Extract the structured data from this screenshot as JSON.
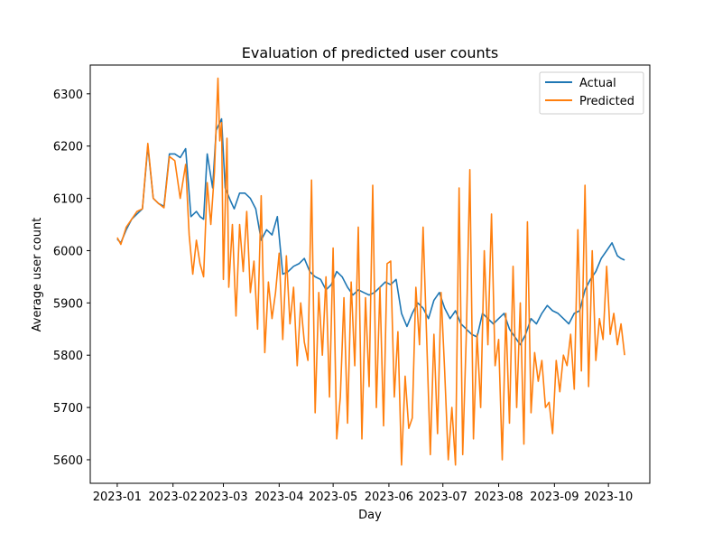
{
  "chart_data": {
    "type": "line",
    "title": "Evaluation of predicted user counts",
    "xlabel": "Day",
    "ylabel": "Average user count",
    "x_start": "2023-01-01",
    "x_end": "2023-10-10",
    "xlim": [
      "2022-12-17",
      "2023-10-24"
    ],
    "ylim": [
      5555,
      6355
    ],
    "x_ticks": [
      "2023-01",
      "2023-02",
      "2023-03",
      "2023-04",
      "2023-05",
      "2023-06",
      "2023-07",
      "2023-08",
      "2023-09",
      "2023-10"
    ],
    "y_ticks": [
      5600,
      5700,
      5800,
      5900,
      6000,
      6100,
      6200,
      6300
    ],
    "grid": false,
    "legend": "top-right",
    "series": [
      {
        "name": "Actual",
        "color": "#1f77b4",
        "points": [
          [
            "2023-01-01",
            6022
          ],
          [
            "2023-01-03",
            6015
          ],
          [
            "2023-01-06",
            6040
          ],
          [
            "2023-01-09",
            6060
          ],
          [
            "2023-01-12",
            6070
          ],
          [
            "2023-01-15",
            6080
          ],
          [
            "2023-01-18",
            6200
          ],
          [
            "2023-01-21",
            6100
          ],
          [
            "2023-01-24",
            6090
          ],
          [
            "2023-01-27",
            6085
          ],
          [
            "2023-01-30",
            6185
          ],
          [
            "2023-02-02",
            6185
          ],
          [
            "2023-02-05",
            6178
          ],
          [
            "2023-02-08",
            6195
          ],
          [
            "2023-02-11",
            6065
          ],
          [
            "2023-02-14",
            6075
          ],
          [
            "2023-02-16",
            6065
          ],
          [
            "2023-02-18",
            6060
          ],
          [
            "2023-02-20",
            6185
          ],
          [
            "2023-02-23",
            6120
          ],
          [
            "2023-02-25",
            6230
          ],
          [
            "2023-02-28",
            6252
          ],
          [
            "2023-03-02",
            6120
          ],
          [
            "2023-03-05",
            6095
          ],
          [
            "2023-03-07",
            6080
          ],
          [
            "2023-03-10",
            6110
          ],
          [
            "2023-03-13",
            6110
          ],
          [
            "2023-03-16",
            6100
          ],
          [
            "2023-03-19",
            6080
          ],
          [
            "2023-03-22",
            6020
          ],
          [
            "2023-03-25",
            6040
          ],
          [
            "2023-03-28",
            6030
          ],
          [
            "2023-03-31",
            6065
          ],
          [
            "2023-04-03",
            5955
          ],
          [
            "2023-04-06",
            5960
          ],
          [
            "2023-04-09",
            5970
          ],
          [
            "2023-04-12",
            5975
          ],
          [
            "2023-04-15",
            5985
          ],
          [
            "2023-04-18",
            5960
          ],
          [
            "2023-04-21",
            5950
          ],
          [
            "2023-04-24",
            5945
          ],
          [
            "2023-04-27",
            5925
          ],
          [
            "2023-04-30",
            5935
          ],
          [
            "2023-05-03",
            5960
          ],
          [
            "2023-05-06",
            5950
          ],
          [
            "2023-05-09",
            5930
          ],
          [
            "2023-05-12",
            5915
          ],
          [
            "2023-05-15",
            5925
          ],
          [
            "2023-05-18",
            5920
          ],
          [
            "2023-05-21",
            5915
          ],
          [
            "2023-05-24",
            5920
          ],
          [
            "2023-05-27",
            5930
          ],
          [
            "2023-05-30",
            5940
          ],
          [
            "2023-06-02",
            5935
          ],
          [
            "2023-06-05",
            5945
          ],
          [
            "2023-06-08",
            5880
          ],
          [
            "2023-06-11",
            5855
          ],
          [
            "2023-06-14",
            5880
          ],
          [
            "2023-06-17",
            5900
          ],
          [
            "2023-06-20",
            5890
          ],
          [
            "2023-06-23",
            5870
          ],
          [
            "2023-06-26",
            5905
          ],
          [
            "2023-06-29",
            5920
          ],
          [
            "2023-07-02",
            5890
          ],
          [
            "2023-07-05",
            5870
          ],
          [
            "2023-07-08",
            5885
          ],
          [
            "2023-07-11",
            5860
          ],
          [
            "2023-07-14",
            5850
          ],
          [
            "2023-07-17",
            5840
          ],
          [
            "2023-07-20",
            5835
          ],
          [
            "2023-07-23",
            5880
          ],
          [
            "2023-07-26",
            5870
          ],
          [
            "2023-07-29",
            5860
          ],
          [
            "2023-08-01",
            5870
          ],
          [
            "2023-08-04",
            5880
          ],
          [
            "2023-08-07",
            5850
          ],
          [
            "2023-08-10",
            5835
          ],
          [
            "2023-08-13",
            5820
          ],
          [
            "2023-08-16",
            5840
          ],
          [
            "2023-08-19",
            5870
          ],
          [
            "2023-08-22",
            5860
          ],
          [
            "2023-08-25",
            5880
          ],
          [
            "2023-08-28",
            5895
          ],
          [
            "2023-08-31",
            5885
          ],
          [
            "2023-09-03",
            5880
          ],
          [
            "2023-09-06",
            5870
          ],
          [
            "2023-09-09",
            5860
          ],
          [
            "2023-09-12",
            5880
          ],
          [
            "2023-09-15",
            5885
          ],
          [
            "2023-09-18",
            5925
          ],
          [
            "2023-09-21",
            5945
          ],
          [
            "2023-09-24",
            5960
          ],
          [
            "2023-09-27",
            5985
          ],
          [
            "2023-09-30",
            6000
          ],
          [
            "2023-10-03",
            6015
          ],
          [
            "2023-10-06",
            5990
          ],
          [
            "2023-10-08",
            5985
          ],
          [
            "2023-10-10",
            5982
          ]
        ]
      },
      {
        "name": "Predicted",
        "color": "#ff7f0e",
        "points": [
          [
            "2023-01-01",
            6025
          ],
          [
            "2023-01-03",
            6012
          ],
          [
            "2023-01-06",
            6045
          ],
          [
            "2023-01-09",
            6060
          ],
          [
            "2023-01-12",
            6075
          ],
          [
            "2023-01-15",
            6080
          ],
          [
            "2023-01-18",
            6205
          ],
          [
            "2023-01-21",
            6100
          ],
          [
            "2023-01-24",
            6090
          ],
          [
            "2023-01-27",
            6082
          ],
          [
            "2023-01-30",
            6180
          ],
          [
            "2023-02-02",
            6172
          ],
          [
            "2023-02-05",
            6100
          ],
          [
            "2023-02-08",
            6165
          ],
          [
            "2023-02-10",
            6030
          ],
          [
            "2023-02-12",
            5955
          ],
          [
            "2023-02-14",
            6020
          ],
          [
            "2023-02-16",
            5975
          ],
          [
            "2023-02-18",
            5950
          ],
          [
            "2023-02-20",
            6130
          ],
          [
            "2023-02-22",
            6050
          ],
          [
            "2023-02-24",
            6150
          ],
          [
            "2023-02-26",
            6330
          ],
          [
            "2023-02-27",
            6210
          ],
          [
            "2023-02-28",
            6245
          ],
          [
            "2023-03-01",
            5945
          ],
          [
            "2023-03-03",
            6215
          ],
          [
            "2023-03-04",
            5930
          ],
          [
            "2023-03-06",
            6050
          ],
          [
            "2023-03-08",
            5875
          ],
          [
            "2023-03-10",
            6050
          ],
          [
            "2023-03-12",
            5960
          ],
          [
            "2023-03-14",
            6075
          ],
          [
            "2023-03-16",
            5920
          ],
          [
            "2023-03-18",
            5980
          ],
          [
            "2023-03-20",
            5850
          ],
          [
            "2023-03-22",
            6105
          ],
          [
            "2023-03-24",
            5805
          ],
          [
            "2023-03-26",
            5940
          ],
          [
            "2023-03-28",
            5870
          ],
          [
            "2023-03-30",
            5920
          ],
          [
            "2023-04-01",
            5995
          ],
          [
            "2023-04-03",
            5830
          ],
          [
            "2023-04-05",
            5990
          ],
          [
            "2023-04-07",
            5860
          ],
          [
            "2023-04-09",
            5930
          ],
          [
            "2023-04-11",
            5780
          ],
          [
            "2023-04-13",
            5900
          ],
          [
            "2023-04-15",
            5825
          ],
          [
            "2023-04-17",
            5790
          ],
          [
            "2023-04-19",
            6135
          ],
          [
            "2023-04-21",
            5690
          ],
          [
            "2023-04-23",
            5920
          ],
          [
            "2023-04-25",
            5800
          ],
          [
            "2023-04-27",
            5950
          ],
          [
            "2023-04-29",
            5720
          ],
          [
            "2023-05-01",
            6005
          ],
          [
            "2023-05-03",
            5640
          ],
          [
            "2023-05-05",
            5720
          ],
          [
            "2023-05-07",
            5910
          ],
          [
            "2023-05-09",
            5670
          ],
          [
            "2023-05-11",
            5940
          ],
          [
            "2023-05-13",
            5780
          ],
          [
            "2023-05-15",
            6045
          ],
          [
            "2023-05-17",
            5640
          ],
          [
            "2023-05-19",
            5910
          ],
          [
            "2023-05-21",
            5740
          ],
          [
            "2023-05-23",
            6125
          ],
          [
            "2023-05-25",
            5700
          ],
          [
            "2023-05-27",
            5930
          ],
          [
            "2023-05-29",
            5665
          ],
          [
            "2023-05-31",
            5975
          ],
          [
            "2023-06-02",
            5980
          ],
          [
            "2023-06-04",
            5720
          ],
          [
            "2023-06-06",
            5845
          ],
          [
            "2023-06-08",
            5590
          ],
          [
            "2023-06-10",
            5760
          ],
          [
            "2023-06-12",
            5660
          ],
          [
            "2023-06-14",
            5680
          ],
          [
            "2023-06-16",
            5930
          ],
          [
            "2023-06-18",
            5820
          ],
          [
            "2023-06-20",
            6045
          ],
          [
            "2023-06-22",
            5830
          ],
          [
            "2023-06-24",
            5610
          ],
          [
            "2023-06-26",
            5840
          ],
          [
            "2023-06-28",
            5650
          ],
          [
            "2023-06-30",
            5920
          ],
          [
            "2023-07-02",
            5770
          ],
          [
            "2023-07-04",
            5600
          ],
          [
            "2023-07-06",
            5700
          ],
          [
            "2023-07-08",
            5590
          ],
          [
            "2023-07-10",
            6120
          ],
          [
            "2023-07-12",
            5610
          ],
          [
            "2023-07-14",
            5840
          ],
          [
            "2023-07-16",
            6155
          ],
          [
            "2023-07-18",
            5640
          ],
          [
            "2023-07-20",
            5840
          ],
          [
            "2023-07-22",
            5700
          ],
          [
            "2023-07-24",
            6000
          ],
          [
            "2023-07-26",
            5820
          ],
          [
            "2023-07-28",
            6070
          ],
          [
            "2023-07-30",
            5780
          ],
          [
            "2023-08-01",
            5830
          ],
          [
            "2023-08-03",
            5600
          ],
          [
            "2023-08-05",
            5880
          ],
          [
            "2023-08-07",
            5670
          ],
          [
            "2023-08-09",
            5970
          ],
          [
            "2023-08-11",
            5700
          ],
          [
            "2023-08-13",
            5900
          ],
          [
            "2023-08-15",
            5630
          ],
          [
            "2023-08-17",
            6055
          ],
          [
            "2023-08-19",
            5690
          ],
          [
            "2023-08-21",
            5805
          ],
          [
            "2023-08-23",
            5750
          ],
          [
            "2023-08-25",
            5790
          ],
          [
            "2023-08-27",
            5700
          ],
          [
            "2023-08-29",
            5710
          ],
          [
            "2023-08-31",
            5650
          ],
          [
            "2023-09-02",
            5790
          ],
          [
            "2023-09-04",
            5730
          ],
          [
            "2023-09-06",
            5800
          ],
          [
            "2023-09-08",
            5780
          ],
          [
            "2023-09-10",
            5840
          ],
          [
            "2023-09-12",
            5735
          ],
          [
            "2023-09-14",
            6040
          ],
          [
            "2023-09-16",
            5770
          ],
          [
            "2023-09-18",
            6125
          ],
          [
            "2023-09-20",
            5740
          ],
          [
            "2023-09-22",
            6000
          ],
          [
            "2023-09-24",
            5790
          ],
          [
            "2023-09-26",
            5870
          ],
          [
            "2023-09-28",
            5830
          ],
          [
            "2023-09-30",
            5970
          ],
          [
            "2023-10-02",
            5840
          ],
          [
            "2023-10-04",
            5880
          ],
          [
            "2023-10-06",
            5820
          ],
          [
            "2023-10-08",
            5860
          ],
          [
            "2023-10-10",
            5800
          ]
        ]
      }
    ]
  }
}
